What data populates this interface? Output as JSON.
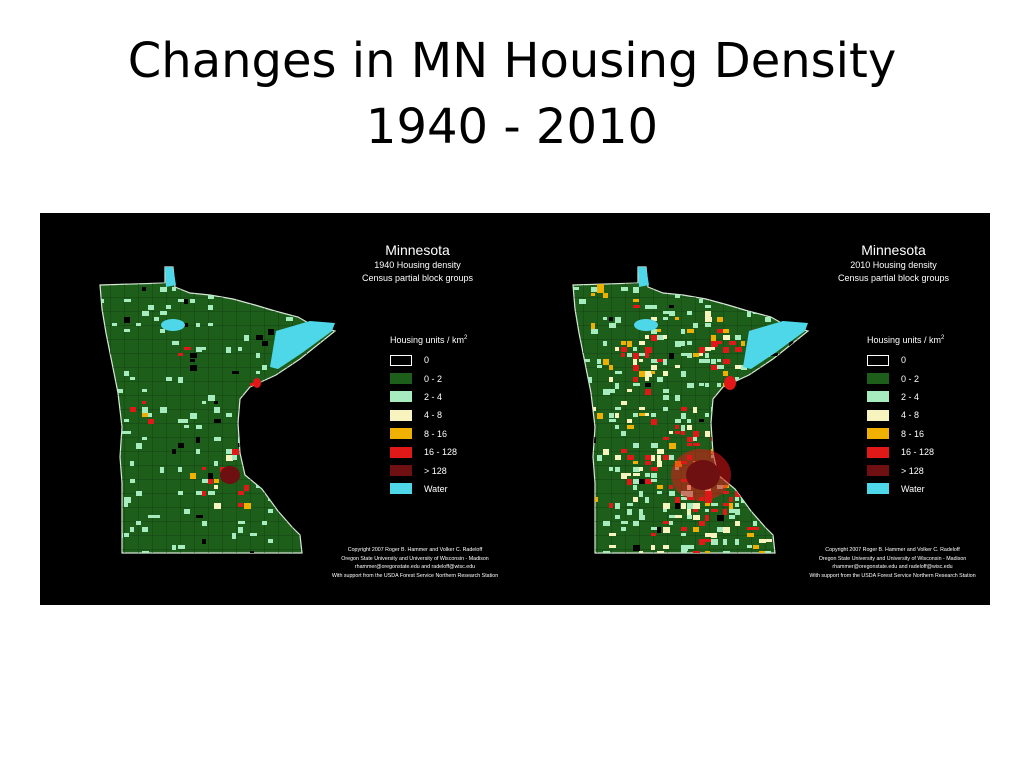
{
  "slide": {
    "title_line1": "Changes in MN Housing Density",
    "title_line2": "1940 - 2010"
  },
  "colors": {
    "background": "#000000",
    "zero": "#000000",
    "d0_2": "#1e5e1b",
    "d2_4": "#a6ecbf",
    "d4_8": "#f7f4c0",
    "d8_16": "#f0b000",
    "d16_128": "#e01818",
    "d128": "#6e0f12",
    "water": "#4ed7e8"
  },
  "maps": [
    {
      "title": "Minnesota",
      "subtitle": "1940  Housing  density",
      "subtitle2": "Census  partial  block  groups",
      "legend_title": "Housing  units  /  km",
      "legend_sup": "2",
      "legend": [
        {
          "label": "0",
          "color": "#000000"
        },
        {
          "label": "0  -  2",
          "color": "#1e5e1b"
        },
        {
          "label": "2  -  4",
          "color": "#a6ecbf"
        },
        {
          "label": "4  -  8",
          "color": "#f7f4c0"
        },
        {
          "label": "8  -  16",
          "color": "#f0b000"
        },
        {
          "label": "16  -  128",
          "color": "#e01818"
        },
        {
          "label": ">  128",
          "color": "#6e0f12"
        },
        {
          "label": "Water",
          "color": "#4ed7e8"
        }
      ],
      "credits": [
        "Copyright  2007  Roger  B.  Hammer  and  Volker  C.  Radeloff",
        "Oregon  State  University  and  University  of  Wisconsin - Madison",
        "rhammer@oregonstate.edu  and  radeloff@wisc.edu",
        "With  support  from  the  USDA  Forest  Service  Northern  Research  Station"
      ]
    },
    {
      "title": "Minnesota",
      "subtitle": "2010  Housing  density",
      "subtitle2": "Census  partial  block  groups",
      "legend_title": "Housing  units  /  km",
      "legend_sup": "2",
      "legend": [
        {
          "label": "0",
          "color": "#000000"
        },
        {
          "label": "0  -  2",
          "color": "#1e5e1b"
        },
        {
          "label": "2  -  4",
          "color": "#a6ecbf"
        },
        {
          "label": "4  -  8",
          "color": "#f7f4c0"
        },
        {
          "label": "8  -  16",
          "color": "#f0b000"
        },
        {
          "label": "16  -  128",
          "color": "#e01818"
        },
        {
          "label": ">  128",
          "color": "#6e0f12"
        },
        {
          "label": "Water",
          "color": "#4ed7e8"
        }
      ],
      "credits": [
        "Copyright  2007  Roger  B.  Hammer  and  Volker  C.  Radeloff",
        "Oregon  State  University  and  University  of  Wisconsin - Madison",
        "rhammer@oregonstate.edu  and  radeloff@wisc.edu",
        "With  support  from  the  USDA  Forest  Service  Northern  Research  Station"
      ]
    }
  ]
}
